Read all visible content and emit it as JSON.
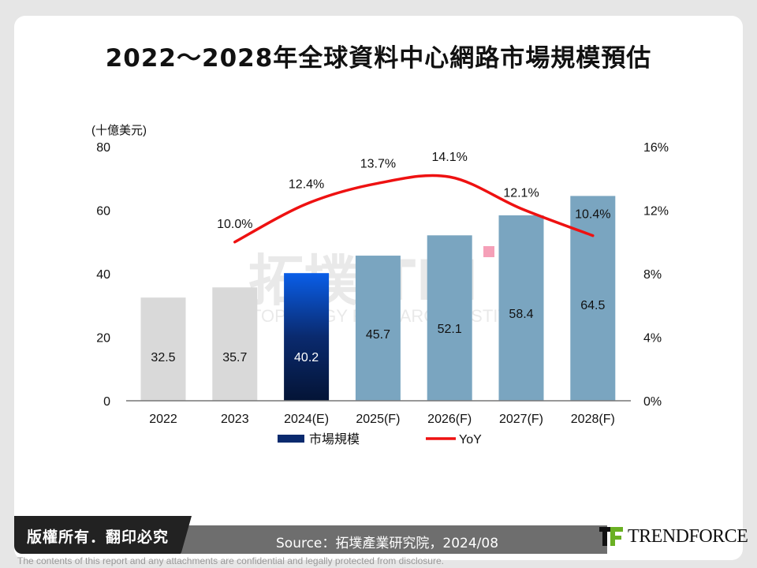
{
  "title": "2022～2028年全球資料中心網路市場規模預估",
  "chart_data": {
    "type": "bar+line",
    "categories": [
      "2022",
      "2023",
      "2024(E)",
      "2025(F)",
      "2026(F)",
      "2027(F)",
      "2028(F)"
    ],
    "y_left": {
      "label": "(十億美元)",
      "range": [
        0,
        80
      ],
      "ticks": [
        "0",
        "20",
        "40",
        "60",
        "80"
      ]
    },
    "y_right": {
      "range": [
        0,
        16
      ],
      "ticks": [
        "0%",
        "4%",
        "8%",
        "12%",
        "16%"
      ]
    },
    "series": [
      {
        "name": "市場規模",
        "type": "bar",
        "values": [
          32.5,
          35.7,
          40.2,
          45.7,
          52.1,
          58.4,
          64.5
        ],
        "labels": [
          "32.5",
          "35.7",
          "40.2",
          "45.7",
          "52.1",
          "58.4",
          "64.5"
        ],
        "colors": [
          "#d9d9d9",
          "#d9d9d9",
          "#0a2a6e",
          "#7aa5c0",
          "#7aa5c0",
          "#7aa5c0",
          "#7aa5c0"
        ]
      },
      {
        "name": "YoY",
        "type": "line",
        "axis": "right",
        "x": [
          "2023",
          "2024(E)",
          "2025(F)",
          "2026(F)",
          "2027(F)",
          "2028(F)"
        ],
        "values": [
          10.0,
          12.4,
          13.7,
          14.1,
          12.1,
          10.4
        ],
        "labels": [
          "10.0%",
          "12.4%",
          "13.7%",
          "14.1%",
          "12.1%",
          "10.4%"
        ],
        "color": "#ee1111"
      }
    ],
    "legend": "bottom",
    "grid": false
  },
  "watermark": "拓墣 TRI TOPOLOGY RESEARCH INSTITUTE",
  "footer": {
    "copyright": "版權所有．翻印必究",
    "source": "Source：拓墣產業研究院，2024/08",
    "logo": "TRENDFORCE",
    "disclaimer": "The contents of this report and any attachments are confidential and legally protected from disclosure."
  }
}
